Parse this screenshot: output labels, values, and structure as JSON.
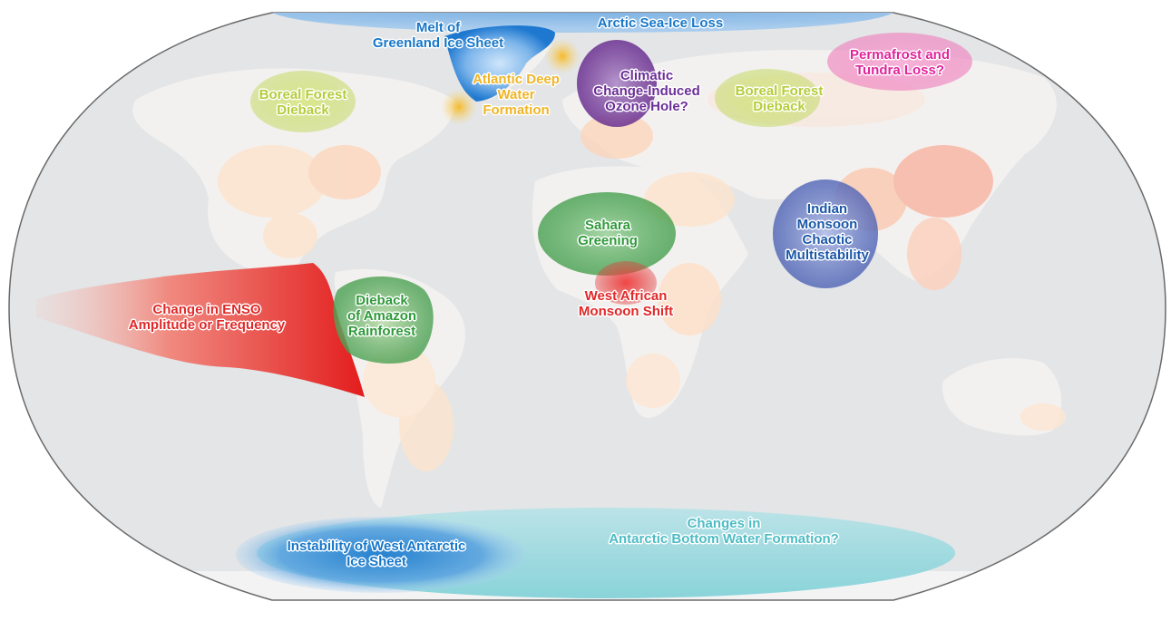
{
  "colors": {
    "ocean": "#e4e6e8",
    "land": "#f3f1ef",
    "population_low": "#fde0c6",
    "population_high": "#f08a7a",
    "frame": "#666666",
    "ice_blue": "#1e88d8",
    "sea_ice": "#8fbde8",
    "atlantic_yellow": "#f3c23a",
    "boreal_green": "#c5d96a",
    "ozone_purple": "#7a3fa0",
    "permafrost_pink": "#e0259a",
    "sahara_green": "#3aa048",
    "monsoon_red": "#e13030",
    "indian_blue": "#1e5fad",
    "enso_red": "#e42a2a",
    "amazon_green": "#3aa048",
    "antarctic_cyan": "#5cc1c8",
    "west_antarctic_blue": "#1a7fce"
  },
  "tipping_elements": [
    {
      "id": "arctic-sea-ice",
      "icon": "sea-ice-region",
      "lines": [
        "Arctic Sea-Ice Loss"
      ]
    },
    {
      "id": "greenland-ice-sheet",
      "icon": "ice-sheet-region",
      "lines": [
        "Melt of",
        "Greenland Ice Sheet"
      ]
    },
    {
      "id": "atlantic-deep-water",
      "icon": "sun-glow-marker",
      "lines": [
        "Atlantic Deep",
        "Water",
        "Formation"
      ]
    },
    {
      "id": "boreal-forest-west",
      "icon": "forest-region",
      "lines": [
        "Boreal Forest",
        "Dieback"
      ]
    },
    {
      "id": "ozone-hole",
      "icon": "ozone-region",
      "lines": [
        "Climatic",
        "Change-Induced",
        "Ozone Hole?"
      ]
    },
    {
      "id": "boreal-forest-east",
      "icon": "forest-region",
      "lines": [
        "Boreal Forest",
        "Dieback"
      ]
    },
    {
      "id": "permafrost",
      "icon": "permafrost-region",
      "lines": [
        "Permafrost and",
        "Tundra Loss?"
      ]
    },
    {
      "id": "sahara-greening",
      "icon": "desert-region",
      "lines": [
        "Sahara",
        "Greening"
      ]
    },
    {
      "id": "west-african-monsoon",
      "icon": "monsoon-region",
      "lines": [
        "West African",
        "Monsoon Shift"
      ]
    },
    {
      "id": "indian-monsoon",
      "icon": "monsoon-region",
      "lines": [
        "Indian",
        "Monsoon",
        "Chaotic",
        "Multistability"
      ]
    },
    {
      "id": "enso",
      "icon": "ocean-current-region",
      "lines": [
        "Change in ENSO",
        "Amplitude or Frequency"
      ]
    },
    {
      "id": "amazon-dieback",
      "icon": "rainforest-region",
      "lines": [
        "Dieback",
        "of Amazon",
        "Rainforest"
      ]
    },
    {
      "id": "antarctic-bottom-water",
      "icon": "ocean-current-region",
      "lines": [
        "Changes in",
        "Antarctic Bottom Water Formation?"
      ]
    },
    {
      "id": "west-antarctic-ice-sheet",
      "icon": "ice-sheet-region",
      "lines": [
        "Instability of West Antarctic",
        "Ice Sheet"
      ]
    }
  ]
}
